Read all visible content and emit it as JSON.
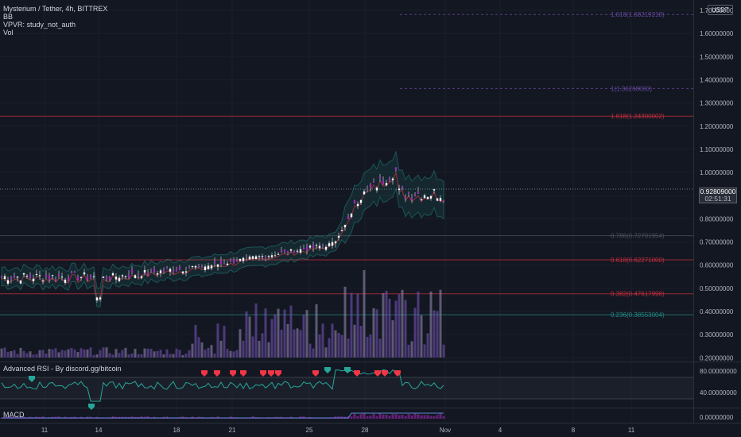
{
  "header": {
    "symbol_line": "Mysterium / Tether, 4h, BITTREX",
    "indicators": [
      "BB",
      "VPVR: study_not_auth",
      "Vol"
    ]
  },
  "currency_badge": "USDT",
  "price_axis": {
    "labels": [
      "1.70000000",
      "1.60000000",
      "1.50000000",
      "1.40000000",
      "1.30000000",
      "1.20000000",
      "1.10000000",
      "1.00000000",
      "0.90000000",
      "0.80000000",
      "0.70000000",
      "0.60000000",
      "0.50000000",
      "0.40000000",
      "0.30000000",
      "0.20000000"
    ],
    "values": [
      1.7,
      1.6,
      1.5,
      1.4,
      1.3,
      1.2,
      1.1,
      1.0,
      0.9,
      0.8,
      0.7,
      0.6,
      0.5,
      0.4,
      0.3,
      0.2
    ],
    "current_price": "0.92809000",
    "countdown": "02:51:31"
  },
  "fib_levels": [
    {
      "label": "1.618(1.68219218)",
      "value": 1.68219218,
      "color": "#7e57c2",
      "dashed": true
    },
    {
      "label": "1(1.36268000)",
      "value": 1.36268,
      "color": "#7e57c2",
      "dashed": true
    },
    {
      "label": "1.618(1.24300002)",
      "value": 1.24300002,
      "color": "#f23645",
      "dashed": false
    },
    {
      "label": "0.786(0.72701954)",
      "value": 0.72701954,
      "color": "#5d606b",
      "dashed": false
    },
    {
      "label": "0.618(0.62271000)",
      "value": 0.62271,
      "color": "#f23645",
      "dashed": false
    },
    {
      "label": "0.382(0.47617998)",
      "value": 0.47617998,
      "color": "#f23645",
      "dashed": false
    },
    {
      "label": "0.236(0.38553004)",
      "value": 0.38553004,
      "color": "#26a69a",
      "dashed": false
    }
  ],
  "rsi": {
    "title": "Advanced RSI - By discord.gg/bitcoin",
    "axis_labels": [
      "80.00000000",
      "40.00000000"
    ]
  },
  "macd": {
    "title": "MACD",
    "axis_labels": [
      "0.00000000"
    ]
  },
  "time_axis": [
    "11",
    "14",
    "18",
    "21",
    "25",
    "28",
    "Nov",
    "4",
    "8",
    "11"
  ],
  "colors": {
    "up": "#26a69a",
    "candle": "#9c27b0",
    "down": "#f23645",
    "bg": "#131722",
    "grid": "#1e222d",
    "bb": "#1e3a3f"
  }
}
